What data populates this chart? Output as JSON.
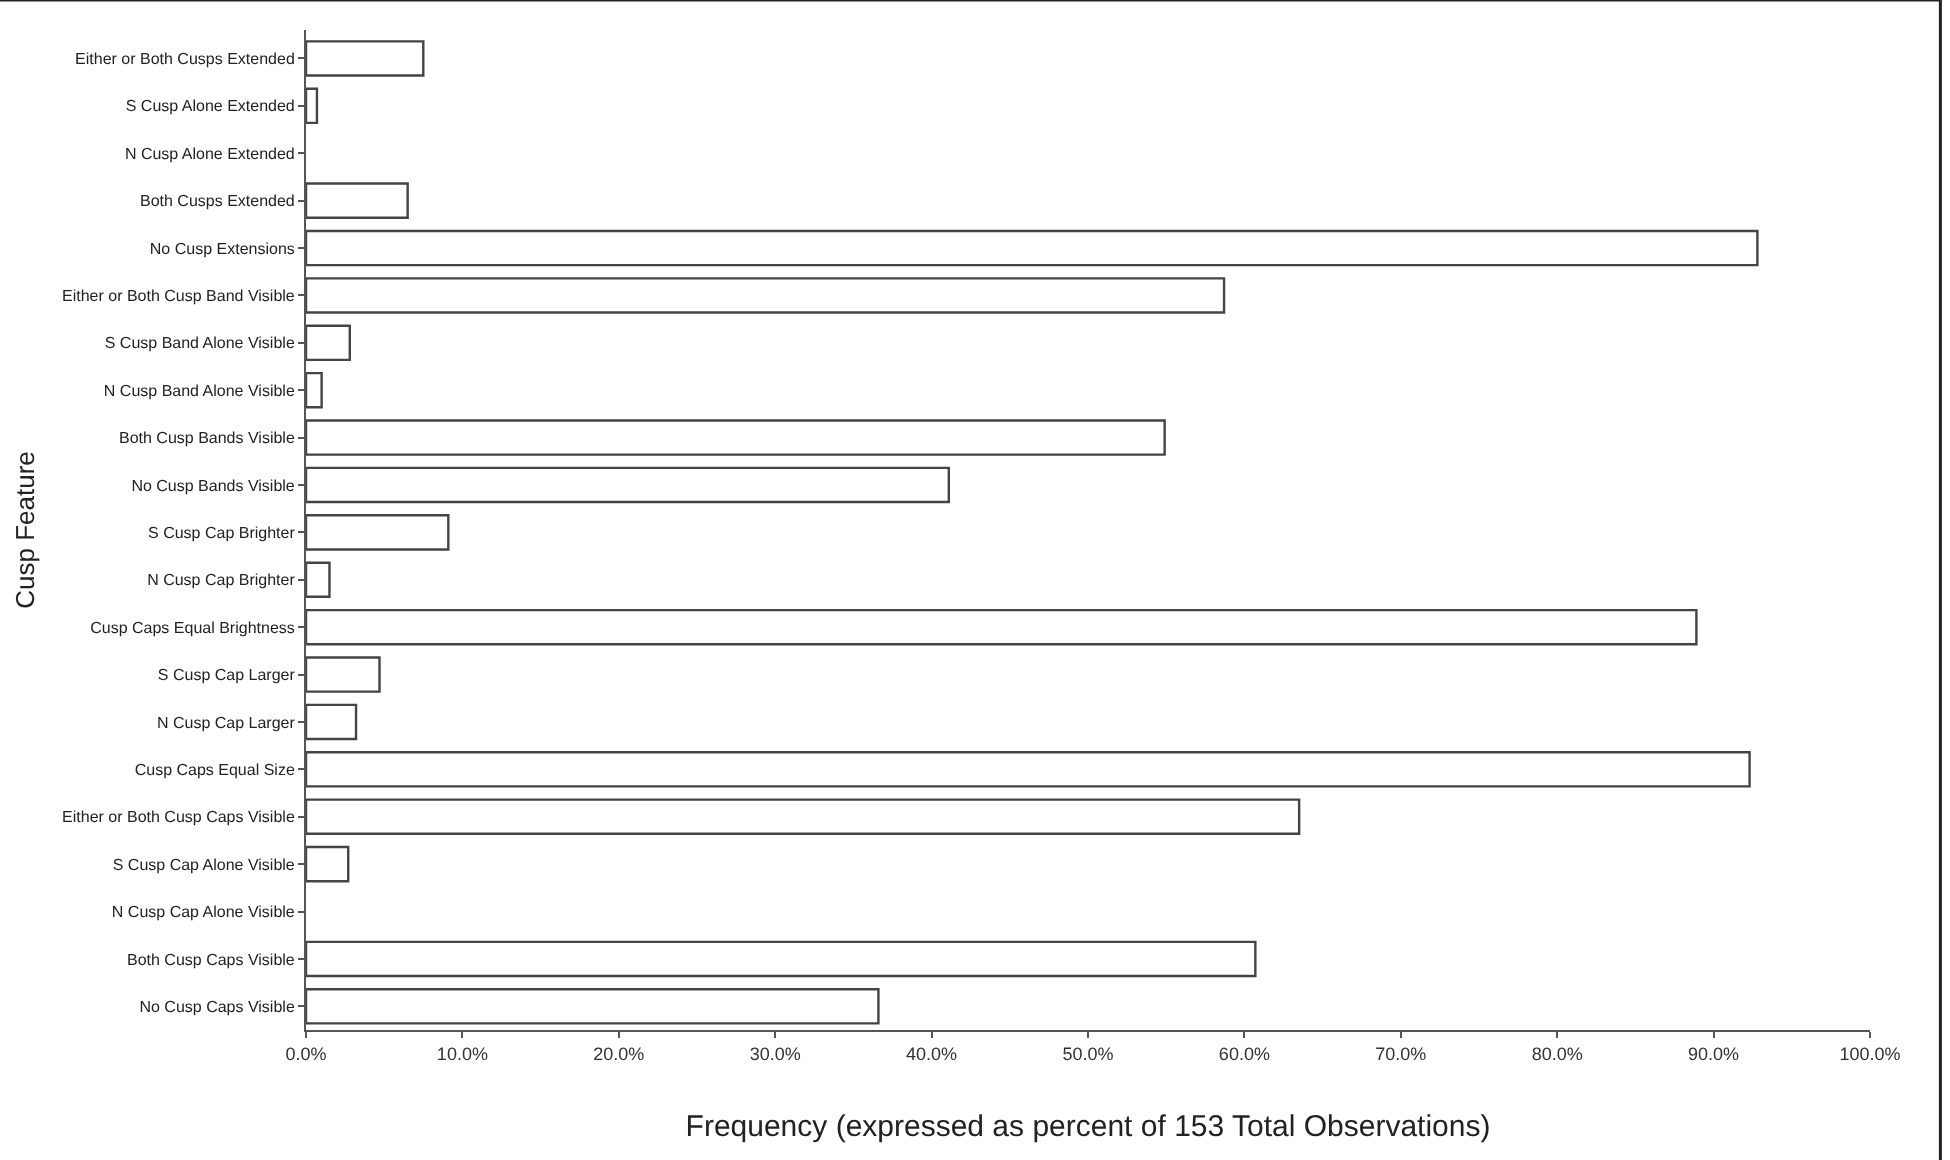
{
  "chart_data": {
    "type": "bar",
    "orientation": "horizontal",
    "xlabel": "Frequency (expressed as percent of 153 Total Observations)",
    "ylabel": "Cusp Feature",
    "categories": [
      "Either or Both Cusps Extended",
      "S Cusp Alone Extended",
      "N Cusp Alone Extended",
      "Both Cusps Extended",
      "No Cusp Extensions",
      "Either or Both Cusp Band Visible",
      "S Cusp Band Alone Visible",
      "N Cusp Band Alone Visible",
      "Both Cusp Bands Visible",
      "No Cusp Bands Visible",
      "S Cusp Cap Brighter",
      "N Cusp Cap Brighter",
      "Cusp Caps Equal Brightness",
      "S Cusp Cap Larger",
      "N Cusp Cap Larger",
      "Cusp Caps Equal Size",
      "Either or Both Cusp Caps Visible",
      "S Cusp Cap Alone Visible",
      "N Cusp Cap Alone Visible",
      "Both Cusp Caps Visible",
      "No Cusp Caps Visible"
    ],
    "values": [
      7.5,
      0.7,
      0,
      6.5,
      92.8,
      58.7,
      2.8,
      1.0,
      54.9,
      41.1,
      9.1,
      1.5,
      88.9,
      4.7,
      3.2,
      92.3,
      63.5,
      2.7,
      0,
      60.7,
      36.6
    ],
    "color": "#ffffff",
    "xlim": [
      0,
      100
    ],
    "xticks": [
      {
        "value": 0,
        "label": "0.0%"
      },
      {
        "value": 10,
        "label": "10.0%"
      },
      {
        "value": 20,
        "label": "20.0%"
      },
      {
        "value": 30,
        "label": "30.0%"
      },
      {
        "value": 40,
        "label": "40.0%"
      },
      {
        "value": 50,
        "label": "50.0%"
      },
      {
        "value": 60,
        "label": "60.0%"
      },
      {
        "value": 70,
        "label": "70.0%"
      },
      {
        "value": 80,
        "label": "80.0%"
      },
      {
        "value": 90,
        "label": "90.0%"
      },
      {
        "value": 100,
        "label": "100.0%"
      }
    ],
    "legend": false
  }
}
